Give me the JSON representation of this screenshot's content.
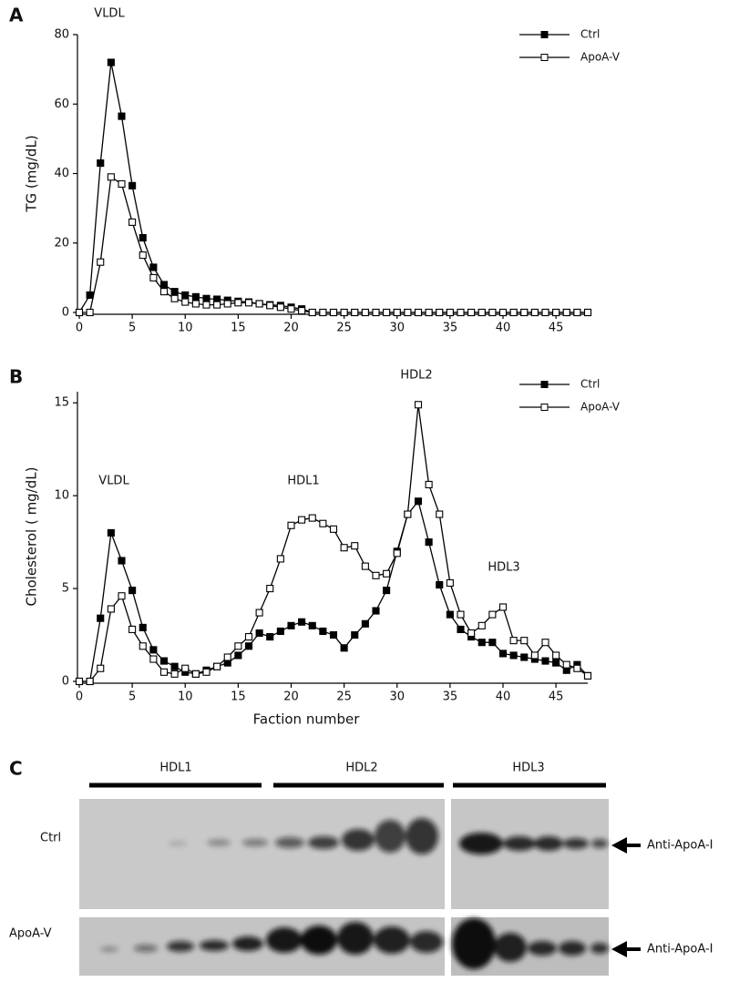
{
  "chart_data": [
    {
      "type": "line",
      "panel": "A",
      "ylabel": "TG (mg/dL)",
      "annotations": [
        "VLDL"
      ],
      "legend": "upper right",
      "xlim": [
        0,
        48
      ],
      "xticks": [
        0,
        5,
        10,
        15,
        20,
        25,
        30,
        35,
        40,
        45
      ],
      "ylim": [
        0,
        80
      ],
      "yticks": [
        0,
        20,
        40,
        60,
        80
      ],
      "x": [
        0,
        1,
        2,
        3,
        4,
        5,
        6,
        7,
        8,
        9,
        10,
        11,
        12,
        13,
        14,
        15,
        16,
        17,
        18,
        19,
        20,
        21,
        22,
        23,
        24,
        25,
        26,
        27,
        28,
        29,
        30,
        31,
        32,
        33,
        34,
        35,
        36,
        37,
        38,
        39,
        40,
        41,
        42,
        43,
        44,
        45,
        46,
        47,
        48
      ],
      "series": [
        {
          "name": "Ctrl",
          "color": "#000000",
          "marker": "filled",
          "values": [
            0,
            5,
            43,
            72,
            56.5,
            36.5,
            21.5,
            13,
            8,
            6,
            5,
            4.5,
            4,
            3.8,
            3.5,
            3.2,
            3,
            2.5,
            2.2,
            2,
            1.5,
            1,
            0,
            0,
            0,
            0,
            0,
            0,
            0,
            0,
            0,
            0,
            0,
            0,
            0,
            0,
            0,
            0,
            0,
            0,
            0,
            0,
            0,
            0,
            0,
            0,
            0,
            0,
            0
          ]
        },
        {
          "name": "ApoA-V",
          "color": "#000000",
          "marker": "open",
          "values": [
            0,
            0,
            14.5,
            39,
            37,
            26,
            16.5,
            10,
            6,
            4,
            3,
            2.5,
            2.2,
            2.2,
            2.5,
            2.8,
            2.8,
            2.5,
            2,
            1.5,
            1,
            0.5,
            0,
            0,
            0,
            0,
            0,
            0,
            0,
            0,
            0,
            0,
            0,
            0,
            0,
            0,
            0,
            0,
            0,
            0,
            0,
            0,
            0,
            0,
            0,
            0,
            0,
            0,
            0
          ]
        }
      ]
    },
    {
      "type": "line",
      "panel": "B",
      "ylabel": "Cholesterol ( mg/dL)",
      "xlabel": "Faction number",
      "annotations": [
        "VLDL",
        "HDL1",
        "HDL2",
        "HDL3"
      ],
      "legend": "upper right",
      "xlim": [
        0,
        48
      ],
      "xticks": [
        0,
        5,
        10,
        15,
        20,
        25,
        30,
        35,
        40,
        45
      ],
      "ylim": [
        0,
        15.6
      ],
      "yticks": [
        0,
        5,
        10,
        15
      ],
      "x": [
        0,
        1,
        2,
        3,
        4,
        5,
        6,
        7,
        8,
        9,
        10,
        11,
        12,
        13,
        14,
        15,
        16,
        17,
        18,
        19,
        20,
        21,
        22,
        23,
        24,
        25,
        26,
        27,
        28,
        29,
        30,
        31,
        32,
        33,
        34,
        35,
        36,
        37,
        38,
        39,
        40,
        41,
        42,
        43,
        44,
        45,
        46,
        47,
        48
      ],
      "series": [
        {
          "name": "Ctrl",
          "color": "#000000",
          "marker": "filled",
          "values": [
            0,
            0,
            3.4,
            8,
            6.5,
            4.9,
            2.9,
            1.7,
            1.1,
            0.8,
            0.5,
            0.4,
            0.6,
            0.8,
            1,
            1.4,
            1.9,
            2.6,
            2.4,
            2.7,
            3,
            3.2,
            3,
            2.7,
            2.5,
            1.8,
            2.5,
            3.1,
            3.8,
            4.9,
            7,
            9,
            9.7,
            7.5,
            5.2,
            3.6,
            2.8,
            2.4,
            2.1,
            2.1,
            1.5,
            1.4,
            1.3,
            1.2,
            1.1,
            1,
            0.6,
            0.9,
            0.3
          ]
        },
        {
          "name": "ApoA-V",
          "color": "#000000",
          "marker": "open",
          "values": [
            0,
            0,
            0.7,
            3.9,
            4.6,
            2.8,
            1.9,
            1.2,
            0.5,
            0.4,
            0.7,
            0.4,
            0.5,
            0.8,
            1.3,
            1.9,
            2.4,
            3.7,
            5,
            6.6,
            8.4,
            8.7,
            8.8,
            8.5,
            8.2,
            7.2,
            7.3,
            6.2,
            5.7,
            5.8,
            6.9,
            9,
            14.9,
            10.6,
            9,
            5.3,
            3.6,
            2.6,
            3,
            3.6,
            4,
            2.2,
            2.2,
            1.4,
            2.1,
            1.4,
            0.9,
            0.7,
            0.3
          ]
        }
      ]
    }
  ],
  "blot": {
    "panel": "C",
    "groups": [
      "HDL1",
      "HDL2",
      "HDL3"
    ],
    "rows": [
      {
        "label": "Ctrl",
        "antibody": "Anti-ApoA-I"
      },
      {
        "label": "ApoA-V",
        "antibody": "Anti-ApoA-I"
      }
    ]
  }
}
